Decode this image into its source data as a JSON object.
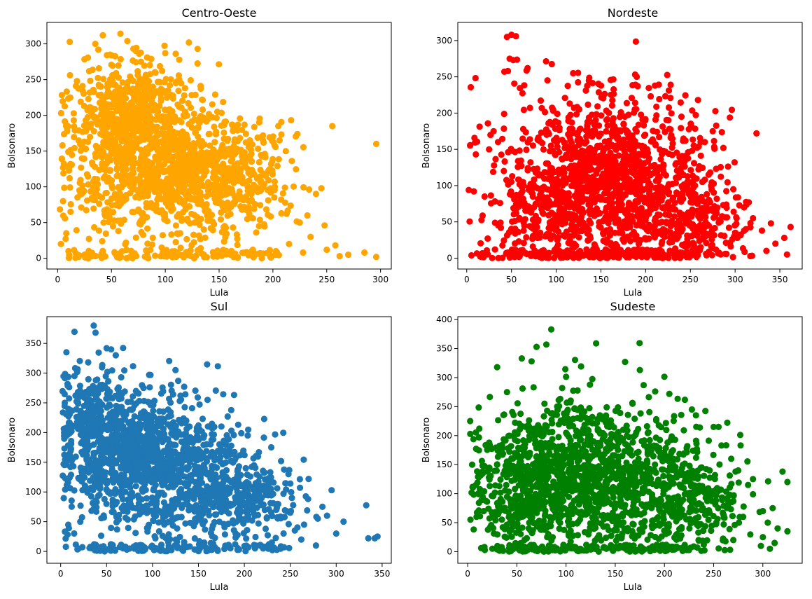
{
  "chart_data": [
    {
      "type": "scatter",
      "title": "Centro-Oeste",
      "xlabel": "Lula",
      "ylabel": "Bolsonaro",
      "color": "#ffa500",
      "xlim": [
        -10,
        310
      ],
      "ylim": [
        -15,
        330
      ],
      "xticks": [
        0,
        50,
        100,
        150,
        200,
        250,
        300
      ],
      "yticks": [
        0,
        50,
        100,
        150,
        200,
        250,
        300
      ],
      "grid": false,
      "density_regions": [
        {
          "x": 80,
          "y": 150,
          "sx": 40,
          "sy": 60,
          "share": 0.45
        },
        {
          "x": 125,
          "y": 120,
          "sx": 40,
          "sy": 45,
          "share": 0.3
        },
        {
          "x": 60,
          "y": 215,
          "sx": 22,
          "sy": 35,
          "share": 0.15
        },
        {
          "x": 170,
          "y": 110,
          "sx": 22,
          "sy": 35,
          "share": 0.1
        }
      ],
      "outliers": [
        [
          296,
          160
        ],
        [
          296,
          2
        ],
        [
          285,
          8
        ],
        [
          270,
          5
        ],
        [
          262,
          3
        ],
        [
          258,
          18
        ],
        [
          245,
          98
        ],
        [
          240,
          90
        ],
        [
          248,
          46
        ],
        [
          232,
          60
        ],
        [
          225,
          50
        ],
        [
          215,
          20
        ],
        [
          212,
          150
        ],
        [
          205,
          185
        ],
        [
          122,
          302
        ],
        [
          130,
          293
        ],
        [
          100,
          287
        ],
        [
          42,
          312
        ],
        [
          35,
          300
        ],
        [
          18,
          248
        ],
        [
          5,
          80
        ],
        [
          8,
          35
        ],
        [
          10,
          10
        ],
        [
          12,
          65
        ],
        [
          3,
          20
        ],
        [
          235,
          30
        ],
        [
          250,
          12
        ],
        [
          228,
          8
        ]
      ]
    },
    {
      "type": "scatter",
      "title": "Nordeste",
      "xlabel": "Lula",
      "ylabel": "Bolsonaro",
      "color": "#ff0000",
      "xlim": [
        -10,
        375
      ],
      "ylim": [
        -15,
        325
      ],
      "xticks": [
        0,
        50,
        100,
        150,
        200,
        250,
        300,
        350
      ],
      "yticks": [
        0,
        50,
        100,
        150,
        200,
        250,
        300
      ],
      "grid": false,
      "density_regions": [
        {
          "x": 150,
          "y": 120,
          "sx": 55,
          "sy": 60,
          "share": 0.5
        },
        {
          "x": 200,
          "y": 80,
          "sx": 45,
          "sy": 55,
          "share": 0.25
        },
        {
          "x": 95,
          "y": 70,
          "sx": 30,
          "sy": 50,
          "share": 0.15
        },
        {
          "x": 260,
          "y": 40,
          "sx": 30,
          "sy": 30,
          "share": 0.1
        }
      ],
      "outliers": [
        [
          45,
          305
        ],
        [
          50,
          308
        ],
        [
          55,
          306
        ],
        [
          48,
          275
        ],
        [
          52,
          273
        ],
        [
          42,
          257
        ],
        [
          46,
          258
        ],
        [
          68,
          262
        ],
        [
          8,
          92
        ],
        [
          20,
          85
        ],
        [
          362,
          43
        ],
        [
          358,
          5
        ],
        [
          355,
          28
        ],
        [
          345,
          20
        ],
        [
          340,
          48
        ],
        [
          335,
          10
        ],
        [
          330,
          38
        ],
        [
          275,
          175
        ],
        [
          228,
          239
        ],
        [
          240,
          195
        ],
        [
          30,
          175
        ],
        [
          35,
          160
        ],
        [
          25,
          150
        ],
        [
          310,
          70
        ],
        [
          320,
          55
        ],
        [
          298,
          95
        ],
        [
          312,
          40
        ]
      ]
    },
    {
      "type": "scatter",
      "title": "Sul",
      "xlabel": "Lula",
      "ylabel": "Bolsonaro",
      "color": "#1f77b4",
      "xlim": [
        -15,
        360
      ],
      "ylim": [
        -20,
        395
      ],
      "xticks": [
        0,
        50,
        100,
        150,
        200,
        250,
        300,
        350
      ],
      "yticks": [
        0,
        50,
        100,
        150,
        200,
        250,
        300,
        350
      ],
      "grid": false,
      "density_regions": [
        {
          "x": 75,
          "y": 160,
          "sx": 40,
          "sy": 65,
          "share": 0.45
        },
        {
          "x": 130,
          "y": 130,
          "sx": 45,
          "sy": 55,
          "share": 0.3
        },
        {
          "x": 40,
          "y": 230,
          "sx": 20,
          "sy": 40,
          "share": 0.1
        },
        {
          "x": 200,
          "y": 90,
          "sx": 30,
          "sy": 35,
          "share": 0.15
        }
      ],
      "outliers": [
        [
          36,
          380
        ],
        [
          38,
          368
        ],
        [
          50,
          342
        ],
        [
          55,
          340
        ],
        [
          60,
          330
        ],
        [
          30,
          318
        ],
        [
          125,
          305
        ],
        [
          345,
          25
        ],
        [
          342,
          22
        ],
        [
          335,
          22
        ],
        [
          308,
          50
        ],
        [
          300,
          30
        ],
        [
          295,
          103
        ],
        [
          290,
          60
        ],
        [
          285,
          75
        ],
        [
          278,
          10
        ],
        [
          270,
          122
        ],
        [
          262,
          20
        ],
        [
          255,
          35
        ],
        [
          250,
          65
        ],
        [
          240,
          152
        ],
        [
          248,
          130
        ],
        [
          18,
          302
        ],
        [
          15,
          295
        ],
        [
          265,
          45
        ],
        [
          280,
          55
        ],
        [
          230,
          15
        ]
      ]
    },
    {
      "type": "scatter",
      "title": "Sudeste",
      "xlabel": "Lula",
      "ylabel": "Bolsonaro",
      "color": "#008000",
      "xlim": [
        -10,
        340
      ],
      "ylim": [
        -20,
        405
      ],
      "xticks": [
        0,
        50,
        100,
        150,
        200,
        250,
        300
      ],
      "yticks": [
        0,
        50,
        100,
        150,
        200,
        250,
        300,
        350,
        400
      ],
      "grid": false,
      "density_regions": [
        {
          "x": 110,
          "y": 140,
          "sx": 50,
          "sy": 65,
          "share": 0.5
        },
        {
          "x": 170,
          "y": 110,
          "sx": 45,
          "sy": 55,
          "share": 0.25
        },
        {
          "x": 60,
          "y": 90,
          "sx": 25,
          "sy": 55,
          "share": 0.15
        },
        {
          "x": 230,
          "y": 80,
          "sx": 25,
          "sy": 40,
          "share": 0.1
        }
      ],
      "outliers": [
        [
          85,
          383
        ],
        [
          80,
          357
        ],
        [
          70,
          353
        ],
        [
          55,
          333
        ],
        [
          65,
          328
        ],
        [
          160,
          327
        ],
        [
          175,
          313
        ],
        [
          30,
          318
        ],
        [
          325,
          120
        ],
        [
          320,
          138
        ],
        [
          325,
          35
        ],
        [
          315,
          40
        ],
        [
          312,
          15
        ],
        [
          310,
          75
        ],
        [
          305,
          50
        ],
        [
          300,
          25
        ],
        [
          298,
          10
        ],
        [
          290,
          125
        ],
        [
          285,
          115
        ],
        [
          280,
          60
        ],
        [
          275,
          140
        ],
        [
          270,
          20
        ],
        [
          262,
          18
        ],
        [
          258,
          183
        ],
        [
          255,
          215
        ],
        [
          250,
          215
        ],
        [
          232,
          235
        ],
        [
          205,
          272
        ],
        [
          40,
          275
        ],
        [
          300,
          70
        ]
      ]
    }
  ]
}
